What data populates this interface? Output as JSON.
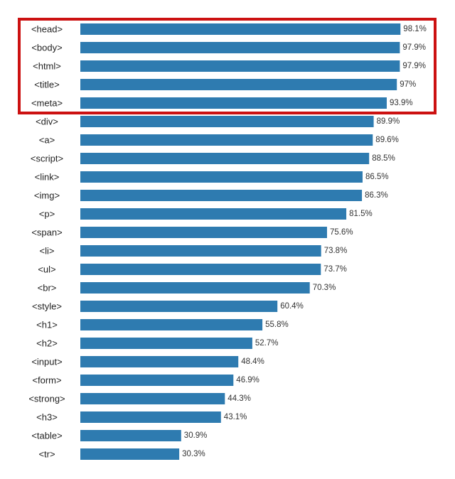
{
  "chart_data": {
    "type": "bar",
    "orientation": "horizontal",
    "categories": [
      "<head>",
      "<body>",
      "<html>",
      "<title>",
      "<meta>",
      "<div>",
      "<a>",
      "<script>",
      "<link>",
      "<img>",
      "<p>",
      "<span>",
      "<li>",
      "<ul>",
      "<br>",
      "<style>",
      "<h1>",
      "<h2>",
      "<input>",
      "<form>",
      "<strong>",
      "<h3>",
      "<table>",
      "<tr>"
    ],
    "values": [
      98.1,
      97.9,
      97.9,
      97.0,
      93.9,
      89.9,
      89.6,
      88.5,
      86.5,
      86.3,
      81.5,
      75.6,
      73.8,
      73.7,
      70.3,
      60.4,
      55.8,
      52.7,
      48.4,
      46.9,
      44.3,
      43.1,
      30.9,
      30.3
    ],
    "value_labels": [
      "98.1%",
      "97.9%",
      "97.9%",
      "97%",
      "93.9%",
      "89.9%",
      "89.6%",
      "88.5%",
      "86.5%",
      "86.3%",
      "81.5%",
      "75.6%",
      "73.8%",
      "73.7%",
      "70.3%",
      "60.4%",
      "55.8%",
      "52.7%",
      "48.4%",
      "46.9%",
      "44.3%",
      "43.1%",
      "30.9%",
      "30.3%"
    ],
    "xlim": [
      0,
      100
    ],
    "grid": false,
    "bar_color": "#2e7bb0",
    "highlight": {
      "categories": [
        "<head>",
        "<body>",
        "<html>",
        "<title>",
        "<meta>"
      ],
      "color": "#cc1111"
    }
  }
}
